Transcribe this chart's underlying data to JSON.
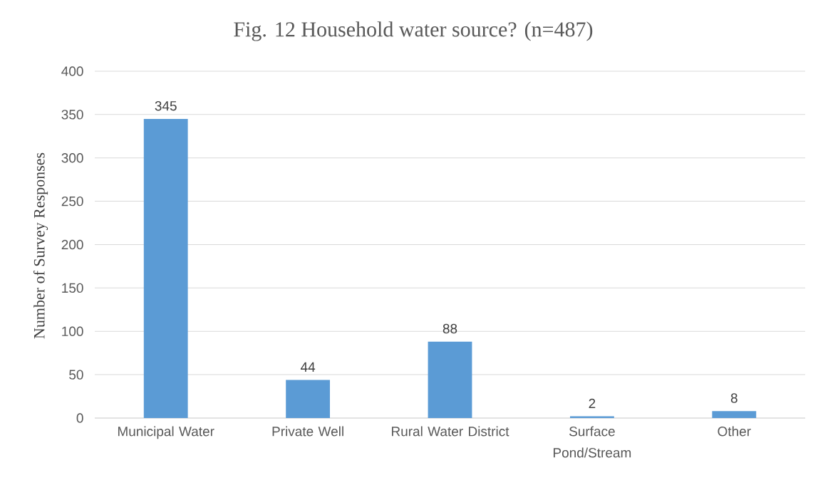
{
  "chart_data": {
    "type": "bar",
    "title": "Fig. 12 Household water source? (n=487)",
    "ylabel": "Number of Survey Responses",
    "categories": [
      "Municipal Water",
      "Private Well",
      "Rural Water District",
      "Surface Pond/Stream",
      "Other"
    ],
    "values": [
      345,
      44,
      88,
      2,
      8
    ],
    "color": "#5b9bd5",
    "ylim": [
      0,
      400
    ],
    "yticks": [
      0,
      50,
      100,
      150,
      200,
      250,
      300,
      350,
      400
    ],
    "grid": "y",
    "data_labels": true
  }
}
